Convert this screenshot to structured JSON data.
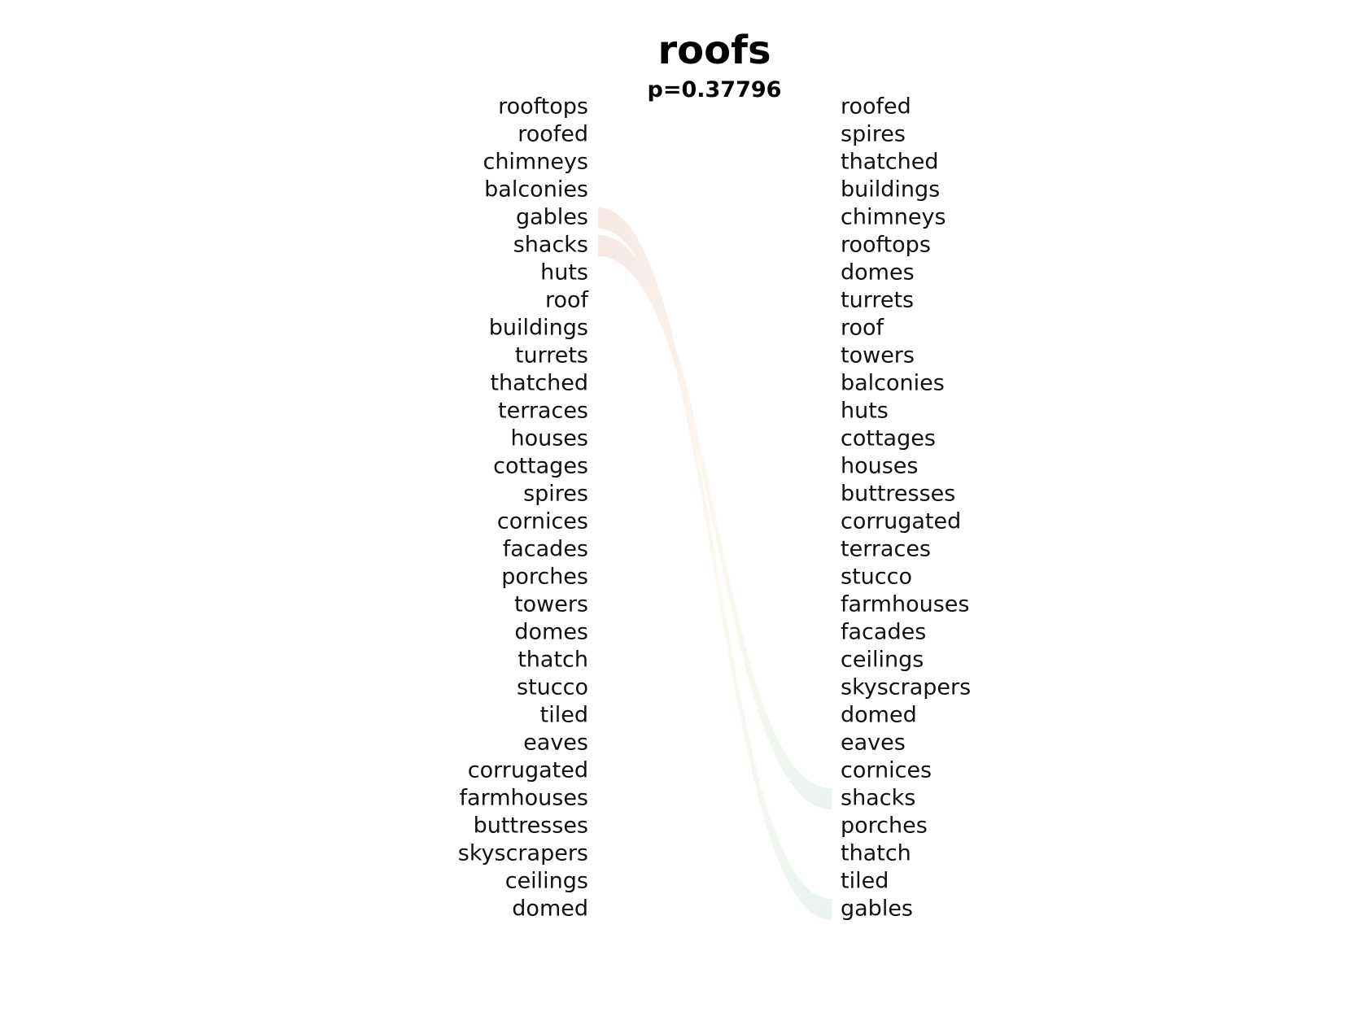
{
  "title": "roofs",
  "subtitle": "p=0.37796",
  "left_words": [
    "rooftops",
    "roofed",
    "chimneys",
    "balconies",
    "gables",
    "shacks",
    "huts",
    "roof",
    "buildings",
    "turrets",
    "thatched",
    "terraces",
    "houses",
    "cottages",
    "spires",
    "cornices",
    "facades",
    "porches",
    "towers",
    "domes",
    "thatch",
    "stucco",
    "tiled",
    "eaves",
    "corrugated",
    "farmhouses",
    "buttresses",
    "skyscrapers",
    "ceilings",
    "domed"
  ],
  "right_words": [
    "roofed",
    "spires",
    "thatched",
    "buildings",
    "chimneys",
    "rooftops",
    "domes",
    "turrets",
    "roof",
    "towers",
    "balconies",
    "huts",
    "cottages",
    "houses",
    "buttresses",
    "corrugated",
    "terraces",
    "stucco",
    "farmhouses",
    "facades",
    "ceilings",
    "skyscrapers",
    "domed",
    "eaves",
    "cornices",
    "shacks",
    "porches",
    "thatch",
    "tiled",
    "gables"
  ],
  "links": [
    {
      "from": "gables",
      "to": "gables"
    },
    {
      "from": "shacks",
      "to": "shacks"
    }
  ],
  "colors": {
    "link_start": "#f7e4e0",
    "link_mid": "#fbf7ef",
    "link_end": "#e6f2ee"
  }
}
